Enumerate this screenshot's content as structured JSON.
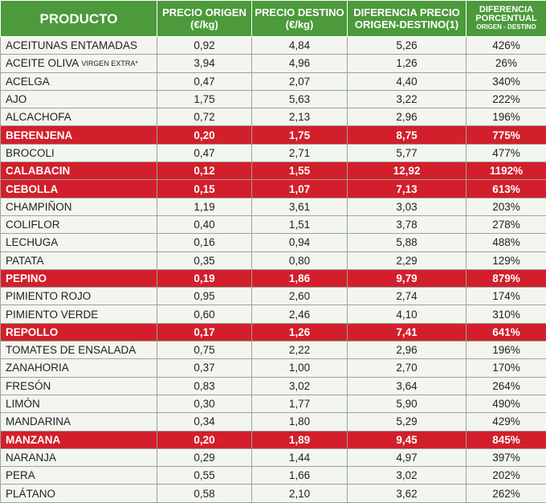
{
  "table": {
    "header": [
      {
        "text": "PRODUCTO"
      },
      {
        "text": "PRECIO ORIGEN (€/kg)"
      },
      {
        "text": "PRECIO DESTINO (€/kg)"
      },
      {
        "text": "DIFERENCIA PRECIO ORIGEN-DESTINO(1)"
      },
      {
        "text": "DIFERENCIA PORCENTUAL",
        "note": "ORIGEN - DESTINO"
      }
    ],
    "rows": [
      {
        "cells": [
          "ACEITUNAS ENTAMADAS",
          "0,92",
          "4,84",
          "5,26",
          "426%"
        ],
        "highlight": false
      },
      {
        "cells": [
          "ACEITE OLIVA",
          "3,94",
          "4,96",
          "1,26",
          "26%"
        ],
        "note": "VIRGEN EXTRA*",
        "highlight": false
      },
      {
        "cells": [
          "ACELGA",
          "0,47",
          "2,07",
          "4,40",
          "340%"
        ],
        "highlight": false
      },
      {
        "cells": [
          "AJO",
          "1,75",
          "5,63",
          "3,22",
          "222%"
        ],
        "highlight": false
      },
      {
        "cells": [
          "ALCACHOFA",
          "0,72",
          "2,13",
          "2,96",
          "196%"
        ],
        "highlight": false
      },
      {
        "cells": [
          "BERENJENA",
          "0,20",
          "1,75",
          "8,75",
          "775%"
        ],
        "highlight": true
      },
      {
        "cells": [
          "BROCOLI",
          "0,47",
          "2,71",
          "5,77",
          "477%"
        ],
        "highlight": false
      },
      {
        "cells": [
          "CALABACIN",
          "0,12",
          "1,55",
          "12,92",
          "1192%"
        ],
        "highlight": true
      },
      {
        "cells": [
          "CEBOLLA",
          "0,15",
          "1,07",
          "7,13",
          "613%"
        ],
        "highlight": true
      },
      {
        "cells": [
          "CHAMPIÑON",
          "1,19",
          "3,61",
          "3,03",
          "203%"
        ],
        "highlight": false
      },
      {
        "cells": [
          "COLIFLOR",
          "0,40",
          "1,51",
          "3,78",
          "278%"
        ],
        "highlight": false
      },
      {
        "cells": [
          "LECHUGA",
          "0,16",
          "0,94",
          "5,88",
          "488%"
        ],
        "highlight": false
      },
      {
        "cells": [
          "PATATA",
          "0,35",
          "0,80",
          "2,29",
          "129%"
        ],
        "highlight": false
      },
      {
        "cells": [
          "PEPINO",
          "0,19",
          "1,86",
          "9,79",
          "879%"
        ],
        "highlight": true
      },
      {
        "cells": [
          "PIMIENTO ROJO",
          "0,95",
          "2,60",
          "2,74",
          "174%"
        ],
        "highlight": false
      },
      {
        "cells": [
          "PIMIENTO VERDE",
          "0,60",
          "2,46",
          "4,10",
          "310%"
        ],
        "highlight": false
      },
      {
        "cells": [
          "REPOLLO",
          "0,17",
          "1,26",
          "7,41",
          "641%"
        ],
        "highlight": true
      },
      {
        "cells": [
          "TOMATES DE ENSALADA",
          "0,75",
          "2,22",
          "2,96",
          "196%"
        ],
        "highlight": false
      },
      {
        "cells": [
          "ZANAHORIA",
          "0,37",
          "1,00",
          "2,70",
          "170%"
        ],
        "highlight": false
      },
      {
        "cells": [
          "FRESÓN",
          "0,83",
          "3,02",
          "3,64",
          "264%"
        ],
        "highlight": false
      },
      {
        "cells": [
          "LIMÓN",
          "0,30",
          "1,77",
          "5,90",
          "490%"
        ],
        "highlight": false
      },
      {
        "cells": [
          "MANDARINA",
          "0,34",
          "1,80",
          "5,29",
          "429%"
        ],
        "highlight": false
      },
      {
        "cells": [
          "MANZANA",
          "0,20",
          "1,89",
          "9,45",
          "845%"
        ],
        "highlight": true
      },
      {
        "cells": [
          "NARANJA",
          "0,29",
          "1,44",
          "4,97",
          "397%"
        ],
        "highlight": false
      },
      {
        "cells": [
          "PERA",
          "0,55",
          "1,66",
          "3,02",
          "202%"
        ],
        "highlight": false
      },
      {
        "cells": [
          "PLÁTANO",
          "0,58",
          "2,10",
          "3,62",
          "262%"
        ],
        "highlight": false
      }
    ]
  }
}
